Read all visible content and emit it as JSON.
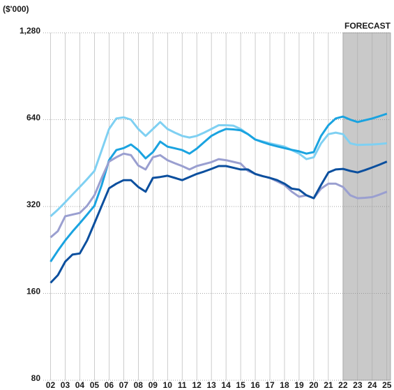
{
  "chart_data": {
    "type": "line",
    "log_scale": true,
    "grid": true,
    "y_axis_label": "($'000)",
    "forecast_label": "FORECAST",
    "forecast_region": [
      2022,
      2025.25
    ],
    "xlim": [
      2001.5,
      2025.25
    ],
    "xticks": [
      {
        "value": 2002,
        "label": "02"
      },
      {
        "value": 2003,
        "label": "03"
      },
      {
        "value": 2004,
        "label": "04"
      },
      {
        "value": 2005,
        "label": "05"
      },
      {
        "value": 2006,
        "label": "06"
      },
      {
        "value": 2007,
        "label": "07"
      },
      {
        "value": 2008,
        "label": "08"
      },
      {
        "value": 2009,
        "label": "09"
      },
      {
        "value": 2010,
        "label": "10"
      },
      {
        "value": 2011,
        "label": "11"
      },
      {
        "value": 2012,
        "label": "12"
      },
      {
        "value": 2013,
        "label": "13"
      },
      {
        "value": 2014,
        "label": "14"
      },
      {
        "value": 2015,
        "label": "15"
      },
      {
        "value": 2016,
        "label": "16"
      },
      {
        "value": 2017,
        "label": "17"
      },
      {
        "value": 2018,
        "label": "18"
      },
      {
        "value": 2019,
        "label": "19"
      },
      {
        "value": 2020,
        "label": "20"
      },
      {
        "value": 2021,
        "label": "21"
      },
      {
        "value": 2022,
        "label": "22"
      },
      {
        "value": 2023,
        "label": "23"
      },
      {
        "value": 2024,
        "label": "24"
      },
      {
        "value": 2025,
        "label": "25"
      }
    ],
    "ylim": [
      80,
      1280
    ],
    "yticks": [
      80,
      160,
      320,
      640,
      {
        "value": 1280,
        "label": "1,280"
      }
    ],
    "x": [
      2002,
      2002.5,
      2003,
      2003.5,
      2004,
      2004.5,
      2005,
      2005.5,
      2006,
      2006.5,
      2007,
      2007.5,
      2008,
      2008.5,
      2009,
      2009.5,
      2010,
      2010.5,
      2011,
      2011.5,
      2012,
      2012.5,
      2013,
      2013.5,
      2014,
      2014.5,
      2015,
      2015.5,
      2016,
      2016.5,
      2017,
      2017.5,
      2018,
      2018.5,
      2019,
      2019.5,
      2020,
      2020.5,
      2021,
      2021.5,
      2022,
      2022.5,
      2023,
      2023.5,
      2024,
      2024.5,
      2025
    ],
    "series": [
      {
        "color": "#7fd0f2",
        "values": [
          296,
          312,
          331,
          352,
          374,
          398,
          425,
          502,
          594,
          646,
          652,
          640,
          594,
          562,
          594,
          628,
          594,
          577,
          562,
          555,
          562,
          577,
          594,
          612,
          612,
          610,
          594,
          570,
          546,
          538,
          530,
          523,
          516,
          502,
          488,
          467,
          474,
          530,
          570,
          577,
          570,
          530,
          523,
          524,
          525,
          527,
          530
        ]
      },
      {
        "color": "#1aa3e0",
        "values": [
          206,
          225,
          244,
          262,
          280,
          300,
          322,
          380,
          463,
          502,
          510,
          525,
          502,
          470,
          494,
          537,
          516,
          509,
          502,
          488,
          508,
          535,
          562,
          580,
          594,
          592,
          588,
          570,
          546,
          535,
          525,
          517,
          510,
          503,
          497,
          488,
          494,
          562,
          612,
          646,
          656,
          640,
          628,
          637,
          646,
          658,
          671
        ]
      },
      {
        "color": "#9a9fd0",
        "values": [
          250,
          263,
          296,
          300,
          304,
          322,
          350,
          402,
          458,
          474,
          488,
          482,
          444,
          430,
          474,
          482,
          463,
          452,
          442,
          430,
          442,
          449,
          456,
          467,
          463,
          457,
          451,
          425,
          415,
          408,
          402,
          391,
          380,
          360,
          346,
          350,
          342,
          369,
          384,
          384,
          374,
          350,
          342,
          343,
          345,
          352,
          360
        ]
      },
      {
        "color": "#0b4f9e",
        "values": [
          174,
          185,
          206,
          218,
          220,
          244,
          280,
          322,
          370,
          384,
          395,
          395,
          374,
          360,
          402,
          405,
          409,
          402,
          395,
          405,
          415,
          423,
          432,
          442,
          442,
          436,
          430,
          430,
          415,
          408,
          402,
          395,
          384,
          369,
          366,
          350,
          342,
          380,
          420,
          430,
          432,
          425,
          420,
          428,
          437,
          447,
          458
        ]
      }
    ]
  }
}
